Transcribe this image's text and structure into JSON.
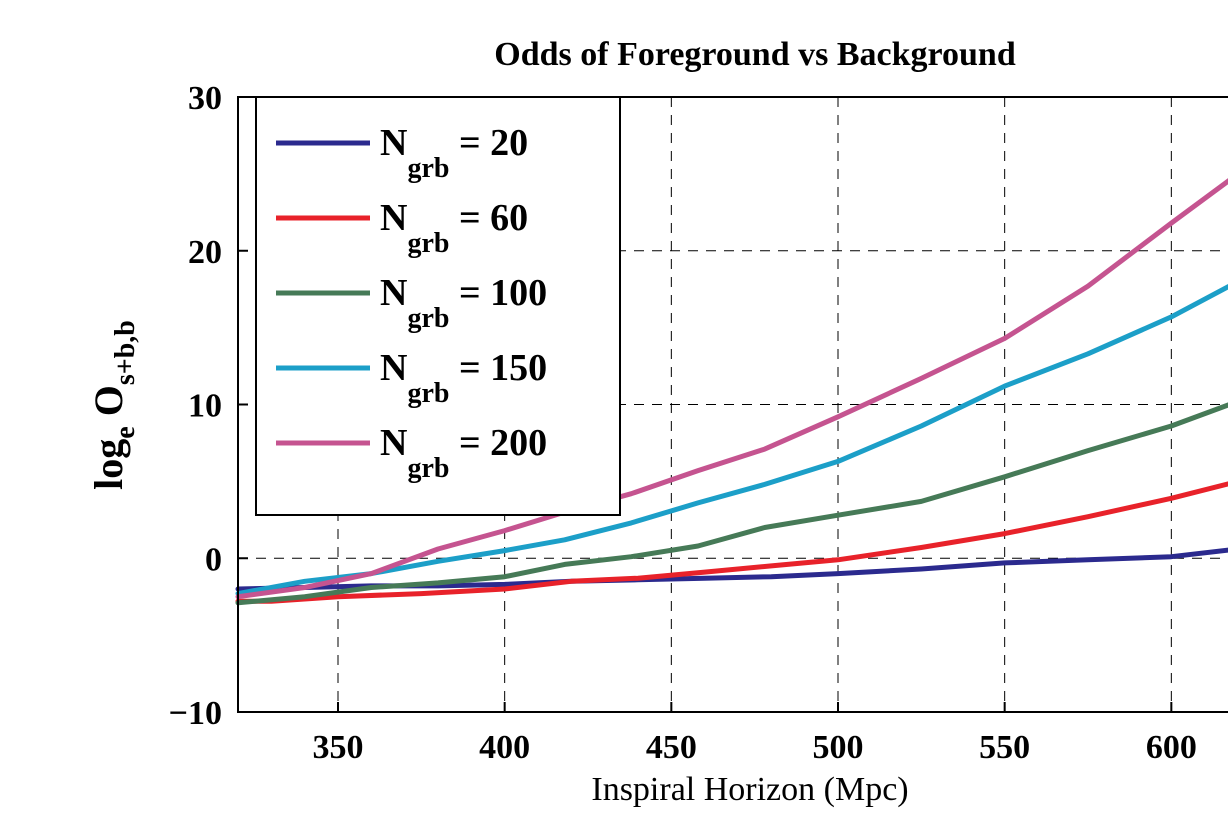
{
  "chart_data": {
    "type": "line",
    "title": "Odds of Foreground vs Background",
    "xlabel": "Inspiral Horizon (Mpc)",
    "ylabel": {
      "main": "log",
      "sub1": "e",
      "mid": " O",
      "sub2": "s+b,b"
    },
    "xlim": [
      320,
      620
    ],
    "ylim": [
      -10,
      30
    ],
    "xticks": [
      350,
      400,
      450,
      500,
      550,
      600
    ],
    "yticks": [
      -10,
      0,
      10,
      20,
      30
    ],
    "xtick_labels": [
      "350",
      "400",
      "450",
      "500",
      "550",
      "600"
    ],
    "ytick_labels": [
      "−10",
      "0",
      "10",
      "20",
      "30"
    ],
    "grid": true,
    "legend_position": "top-left",
    "series": [
      {
        "name": "N",
        "name_sub": "grb",
        "name_suffix": " = 20",
        "color": "#2b2a8e",
        "x": [
          320,
          340,
          360,
          380,
          400,
          420,
          440,
          460,
          480,
          500,
          525,
          550,
          575,
          600,
          620
        ],
        "y": [
          -2.0,
          -1.9,
          -1.8,
          -1.8,
          -1.7,
          -1.5,
          -1.4,
          -1.3,
          -1.2,
          -1.0,
          -0.7,
          -0.3,
          -0.1,
          0.1,
          0.6
        ]
      },
      {
        "name": "N",
        "name_sub": "grb",
        "name_suffix": " = 60",
        "color": "#e8222a",
        "x": [
          320,
          330,
          350,
          375,
          400,
          420,
          440,
          460,
          480,
          500,
          525,
          550,
          575,
          600,
          620
        ],
        "y": [
          -2.8,
          -2.8,
          -2.5,
          -2.3,
          -2.0,
          -1.5,
          -1.3,
          -0.9,
          -0.5,
          -0.1,
          0.7,
          1.6,
          2.7,
          3.9,
          5.0
        ]
      },
      {
        "name": "N",
        "name_sub": "grb",
        "name_suffix": " = 100",
        "color": "#467a57",
        "x": [
          320,
          340,
          360,
          380,
          400,
          418,
          438,
          458,
          478,
          500,
          525,
          550,
          575,
          600,
          620
        ],
        "y": [
          -2.9,
          -2.5,
          -1.9,
          -1.6,
          -1.2,
          -0.4,
          0.1,
          0.8,
          2.0,
          2.8,
          3.7,
          5.3,
          7.0,
          8.6,
          10.2
        ]
      },
      {
        "name": "N",
        "name_sub": "grb",
        "name_suffix": " = 150",
        "color": "#1c9fc8",
        "x": [
          320,
          340,
          360,
          380,
          400,
          418,
          438,
          458,
          478,
          500,
          525,
          550,
          575,
          600,
          620
        ],
        "y": [
          -2.3,
          -1.5,
          -1.0,
          -0.2,
          0.5,
          1.2,
          2.3,
          3.6,
          4.8,
          6.3,
          8.6,
          11.2,
          13.3,
          15.7,
          18.0
        ]
      },
      {
        "name": "N",
        "name_sub": "grb",
        "name_suffix": " = 200",
        "color": "#c55490",
        "x": [
          320,
          340,
          360,
          380,
          400,
          418,
          438,
          458,
          478,
          500,
          525,
          550,
          575,
          600,
          620
        ],
        "y": [
          -2.5,
          -1.9,
          -1.0,
          0.6,
          1.8,
          3.0,
          4.2,
          5.7,
          7.1,
          9.2,
          11.7,
          14.3,
          17.7,
          21.8,
          25.0
        ]
      }
    ]
  }
}
